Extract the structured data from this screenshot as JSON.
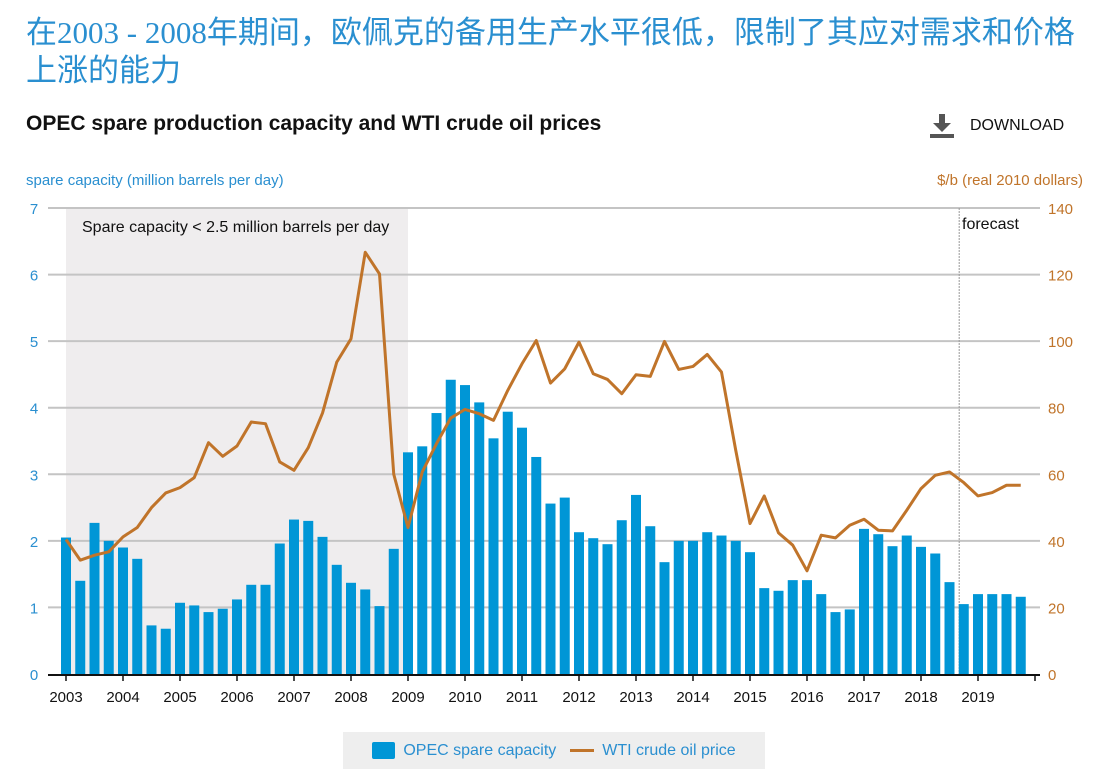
{
  "headline": "在2003 - 2008年期间，欧佩克的备用生产水平很低，限制了其应对需求和价格上涨的能力",
  "download": {
    "label": "DOWNLOAD",
    "icon": "download-icon"
  },
  "colors": {
    "bars": "#0096d6",
    "line": "#c0742a",
    "headline": "#2a8fd0",
    "shade": "#efedee"
  },
  "chart_data": {
    "type": "bar+line",
    "title": "OPEC spare production capacity and WTI crude oil prices",
    "ylabel_left": "spare capacity (million barrels per day)",
    "ylabel_right": "$/b (real 2010 dollars)",
    "ylim_left": [
      0,
      7
    ],
    "ylim_right": [
      0,
      140
    ],
    "yticks_left": [
      "0",
      "1",
      "2",
      "3",
      "4",
      "5",
      "6",
      "7"
    ],
    "yticks_right": [
      "0",
      "20",
      "40",
      "60",
      "80",
      "100",
      "120",
      "140"
    ],
    "xticks": [
      "2003",
      "2004",
      "2005",
      "2006",
      "2007",
      "2008",
      "2009",
      "2010",
      "2011",
      "2012",
      "2013",
      "2014",
      "2015",
      "2016",
      "2017",
      "2018",
      "2019"
    ],
    "x_frequency": "quarterly, 2003Q1-2019Q4",
    "grid": true,
    "legend_placement": "bottom",
    "shaded_region": {
      "from": 2003,
      "to": 2009,
      "label": "Spare capacity < 2.5 million barrels per day"
    },
    "forecast_marker": {
      "at": 2018.67,
      "label": "forecast"
    },
    "series": [
      {
        "name": "OPEC spare capacity",
        "type": "bar",
        "axis": "left",
        "values": [
          2.05,
          1.4,
          2.27,
          2.0,
          1.9,
          1.73,
          0.73,
          0.68,
          1.07,
          1.03,
          0.93,
          0.98,
          1.12,
          1.34,
          1.34,
          1.96,
          2.32,
          2.3,
          2.06,
          1.64,
          1.37,
          1.27,
          1.02,
          1.88,
          3.33,
          3.42,
          3.92,
          4.42,
          4.34,
          4.08,
          3.54,
          3.94,
          3.7,
          3.26,
          2.56,
          2.65,
          2.13,
          2.04,
          1.95,
          2.31,
          2.69,
          2.22,
          1.68,
          2.0,
          2.0,
          2.13,
          2.08,
          2.0,
          1.83,
          1.29,
          1.25,
          1.41,
          1.41,
          1.2,
          0.93,
          0.97,
          2.18,
          2.1,
          1.92,
          2.08,
          1.91,
          1.81,
          1.38,
          1.05,
          1.2,
          1.2,
          1.2,
          1.16
        ]
      },
      {
        "name": "WTI crude oil price",
        "type": "line",
        "axis": "right",
        "values": [
          40.4,
          34.2,
          35.7,
          36.7,
          41.2,
          44,
          50,
          54.4,
          56,
          59,
          69.5,
          65.4,
          68.5,
          75.7,
          75.2,
          63.7,
          61.2,
          68,
          78.4,
          93.7,
          100.7,
          126.7,
          120.2,
          60,
          44,
          60.7,
          69.2,
          76.9,
          79.5,
          78.2,
          76.2,
          85.2,
          93.2,
          100.2,
          87.4,
          91.7,
          99.7,
          90.2,
          88.5,
          84.2,
          89.9,
          89.4,
          99.9,
          91.5,
          92.4,
          96,
          90.7,
          67.2,
          45.2,
          53.5,
          42.4,
          38.7,
          31,
          41.7,
          40.9,
          44.7,
          46.5,
          43.2,
          43,
          49.2,
          55.7,
          59.7,
          60.7,
          57.5,
          53.5,
          54.5,
          56.7,
          56.7
        ]
      }
    ]
  }
}
